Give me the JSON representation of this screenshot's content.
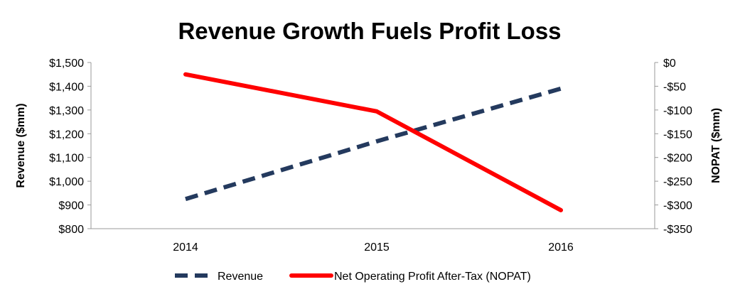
{
  "chart_data": {
    "type": "line",
    "title": "Revenue Growth Fuels Profit Loss",
    "categories": [
      "2014",
      "2015",
      "2016"
    ],
    "y_left": {
      "label": "Revenue ($mm)",
      "lim": [
        800,
        1500
      ],
      "ticks": [
        800,
        900,
        1000,
        1100,
        1200,
        1300,
        1400,
        1500
      ],
      "tick_labels": [
        "$800",
        "$900",
        "$1,000",
        "$1,100",
        "$1,200",
        "$1,300",
        "$1,400",
        "$1,500"
      ]
    },
    "y_right": {
      "label": "NOPAT ($mm)",
      "lim": [
        -350,
        0
      ],
      "ticks": [
        -350,
        -300,
        -250,
        -200,
        -150,
        -100,
        -50,
        0
      ],
      "tick_labels": [
        "-$350",
        "-$300",
        "-$250",
        "-$200",
        "-$150",
        "-$100",
        "-$50",
        "$0"
      ]
    },
    "series": [
      {
        "name": "Revenue",
        "axis": "left",
        "values": [
          925,
          1168,
          1390
        ],
        "color": "#243a5e",
        "style": "dashed"
      },
      {
        "name": "Net Operating Profit After-Tax (NOPAT)",
        "axis": "right",
        "values": [
          -25,
          -103,
          -311
        ],
        "color": "#ff0000",
        "style": "solid"
      }
    ],
    "grid": false,
    "legend_position": "bottom"
  }
}
